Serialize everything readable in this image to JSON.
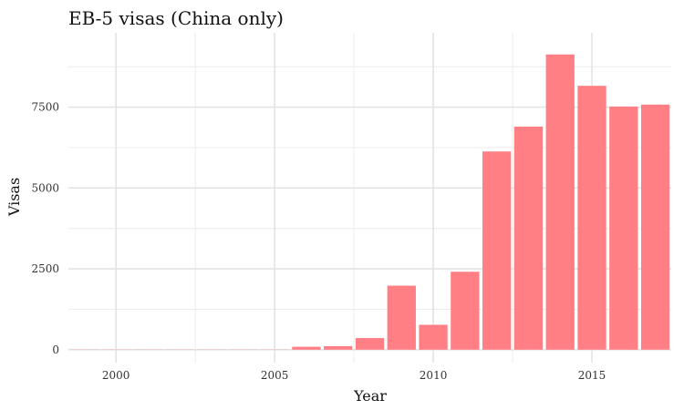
{
  "chart_data": {
    "type": "bar",
    "title": "EB-5 visas (China only)",
    "xlabel": "Year",
    "ylabel": "Visas",
    "x": [
      1999,
      2000,
      2001,
      2002,
      2003,
      2004,
      2005,
      2006,
      2007,
      2008,
      2009,
      2010,
      2011,
      2012,
      2013,
      2014,
      2015,
      2016,
      2017
    ],
    "values": [
      5,
      5,
      5,
      5,
      5,
      5,
      5,
      90,
      110,
      360,
      1980,
      770,
      2410,
      6130,
      6900,
      9130,
      8160,
      7520,
      7580
    ],
    "xlim": [
      1998.5,
      2017.5
    ],
    "ylim": [
      -400,
      9800
    ],
    "xticks": [
      "2000",
      "2005",
      "2010",
      "2015"
    ],
    "yticks": [
      "0",
      "2500",
      "5000",
      "7500"
    ],
    "bar_color": "#ff7f85",
    "grid": true,
    "legend": "none"
  }
}
